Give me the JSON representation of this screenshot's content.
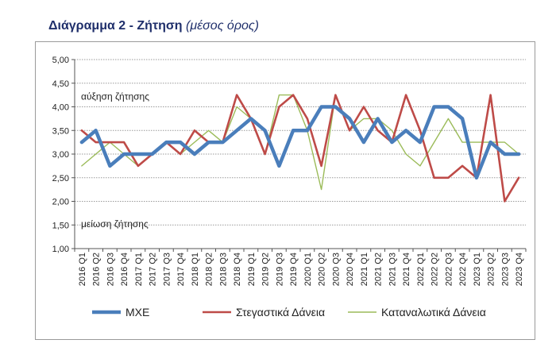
{
  "header": {
    "title": "Διάγραμμα 2 - Ζήτηση",
    "subtitle": "(μέσος όρος)"
  },
  "chart_data": {
    "type": "line",
    "title": "Διάγραμμα 2 - Ζήτηση",
    "subtitle": "(μέσος όρος)",
    "ylim": [
      1.0,
      5.0
    ],
    "ytick_labels": [
      "1,00",
      "1,50",
      "2,00",
      "2,50",
      "3,00",
      "3,50",
      "4,00",
      "4,50",
      "5,00"
    ],
    "grid": true,
    "legend_position": "bottom",
    "annotations": [
      "αύξηση ζήτησης",
      "μείωση ζήτησης"
    ],
    "categories": [
      "2016 Q1",
      "2016 Q2",
      "2016 Q3",
      "2016 Q4",
      "2017 Q1",
      "2017 Q2",
      "2017 Q3",
      "2017 Q4",
      "2018 Q1",
      "2018 Q2",
      "2018 Q3",
      "2018 Q4",
      "2019 Q1",
      "2019 Q2",
      "2019 Q3",
      "2019 Q4",
      "2020 Q1",
      "2020 Q2",
      "2020 Q3",
      "2020 Q4",
      "2021 Q1",
      "2021 Q2",
      "2021 Q3",
      "2021 Q4",
      "2022 Q1",
      "2022 Q2",
      "2022 Q3",
      "2022 Q4",
      "2023 Q1",
      "2023 Q2",
      "2023 Q3",
      "2023 Q4"
    ],
    "series": [
      {
        "name": "ΜΧΕ",
        "color": "#4a7ebb",
        "values": [
          3.25,
          3.5,
          2.75,
          3.0,
          3.0,
          3.0,
          3.25,
          3.25,
          3.0,
          3.25,
          3.25,
          3.5,
          3.75,
          3.5,
          2.75,
          3.5,
          3.5,
          4.0,
          4.0,
          3.75,
          3.25,
          3.75,
          3.25,
          3.5,
          3.25,
          4.0,
          4.0,
          3.75,
          2.5,
          3.25,
          3.0,
          3.0
        ]
      },
      {
        "name": "Στεγαστικά Δάνεια",
        "color": "#be4b48",
        "values": [
          3.5,
          3.25,
          3.25,
          3.25,
          2.75,
          3.0,
          3.25,
          3.0,
          3.5,
          3.25,
          3.25,
          4.25,
          3.75,
          3.0,
          4.0,
          4.25,
          3.75,
          2.75,
          4.25,
          3.5,
          4.0,
          3.5,
          3.25,
          4.25,
          3.5,
          2.5,
          2.5,
          2.75,
          2.5,
          4.25,
          2.0,
          2.5
        ]
      },
      {
        "name": "Καταναλωτικά Δάνεια",
        "color": "#9bbb59",
        "values": [
          2.75,
          3.0,
          3.25,
          3.0,
          2.75,
          3.0,
          3.25,
          3.0,
          3.25,
          3.5,
          3.25,
          4.0,
          3.75,
          3.0,
          4.25,
          4.25,
          3.5,
          2.25,
          4.25,
          3.5,
          3.75,
          3.75,
          3.5,
          3.0,
          2.75,
          3.25,
          3.75,
          3.25,
          3.25,
          3.25,
          3.25,
          3.0
        ]
      }
    ]
  }
}
